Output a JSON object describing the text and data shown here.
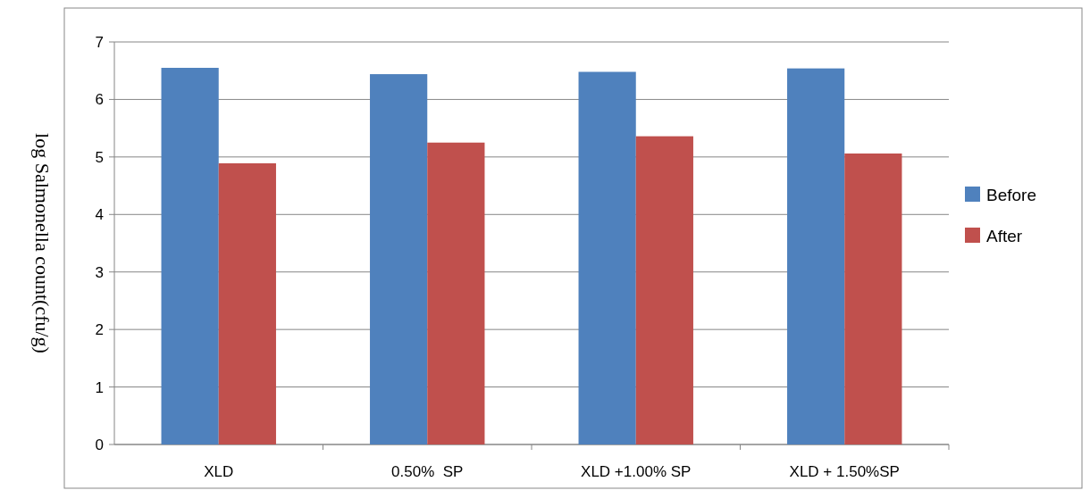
{
  "chart_data": {
    "type": "bar",
    "ylabel": "log Salmonella count(cfu/g)",
    "categories": [
      "XLD",
      "0.50%  SP",
      "XLD +1.00% SP",
      "XLD + 1.50%SP"
    ],
    "series": [
      {
        "name": "Before",
        "color": "#4f81bd",
        "values": [
          6.55,
          6.44,
          6.48,
          6.54
        ]
      },
      {
        "name": "After",
        "color": "#c0504d",
        "values": [
          4.89,
          5.25,
          5.36,
          5.06
        ]
      }
    ],
    "ylim": [
      0,
      7
    ],
    "yticks": [
      0,
      1,
      2,
      3,
      4,
      5,
      6,
      7
    ],
    "grid": "y",
    "legend": "right"
  }
}
